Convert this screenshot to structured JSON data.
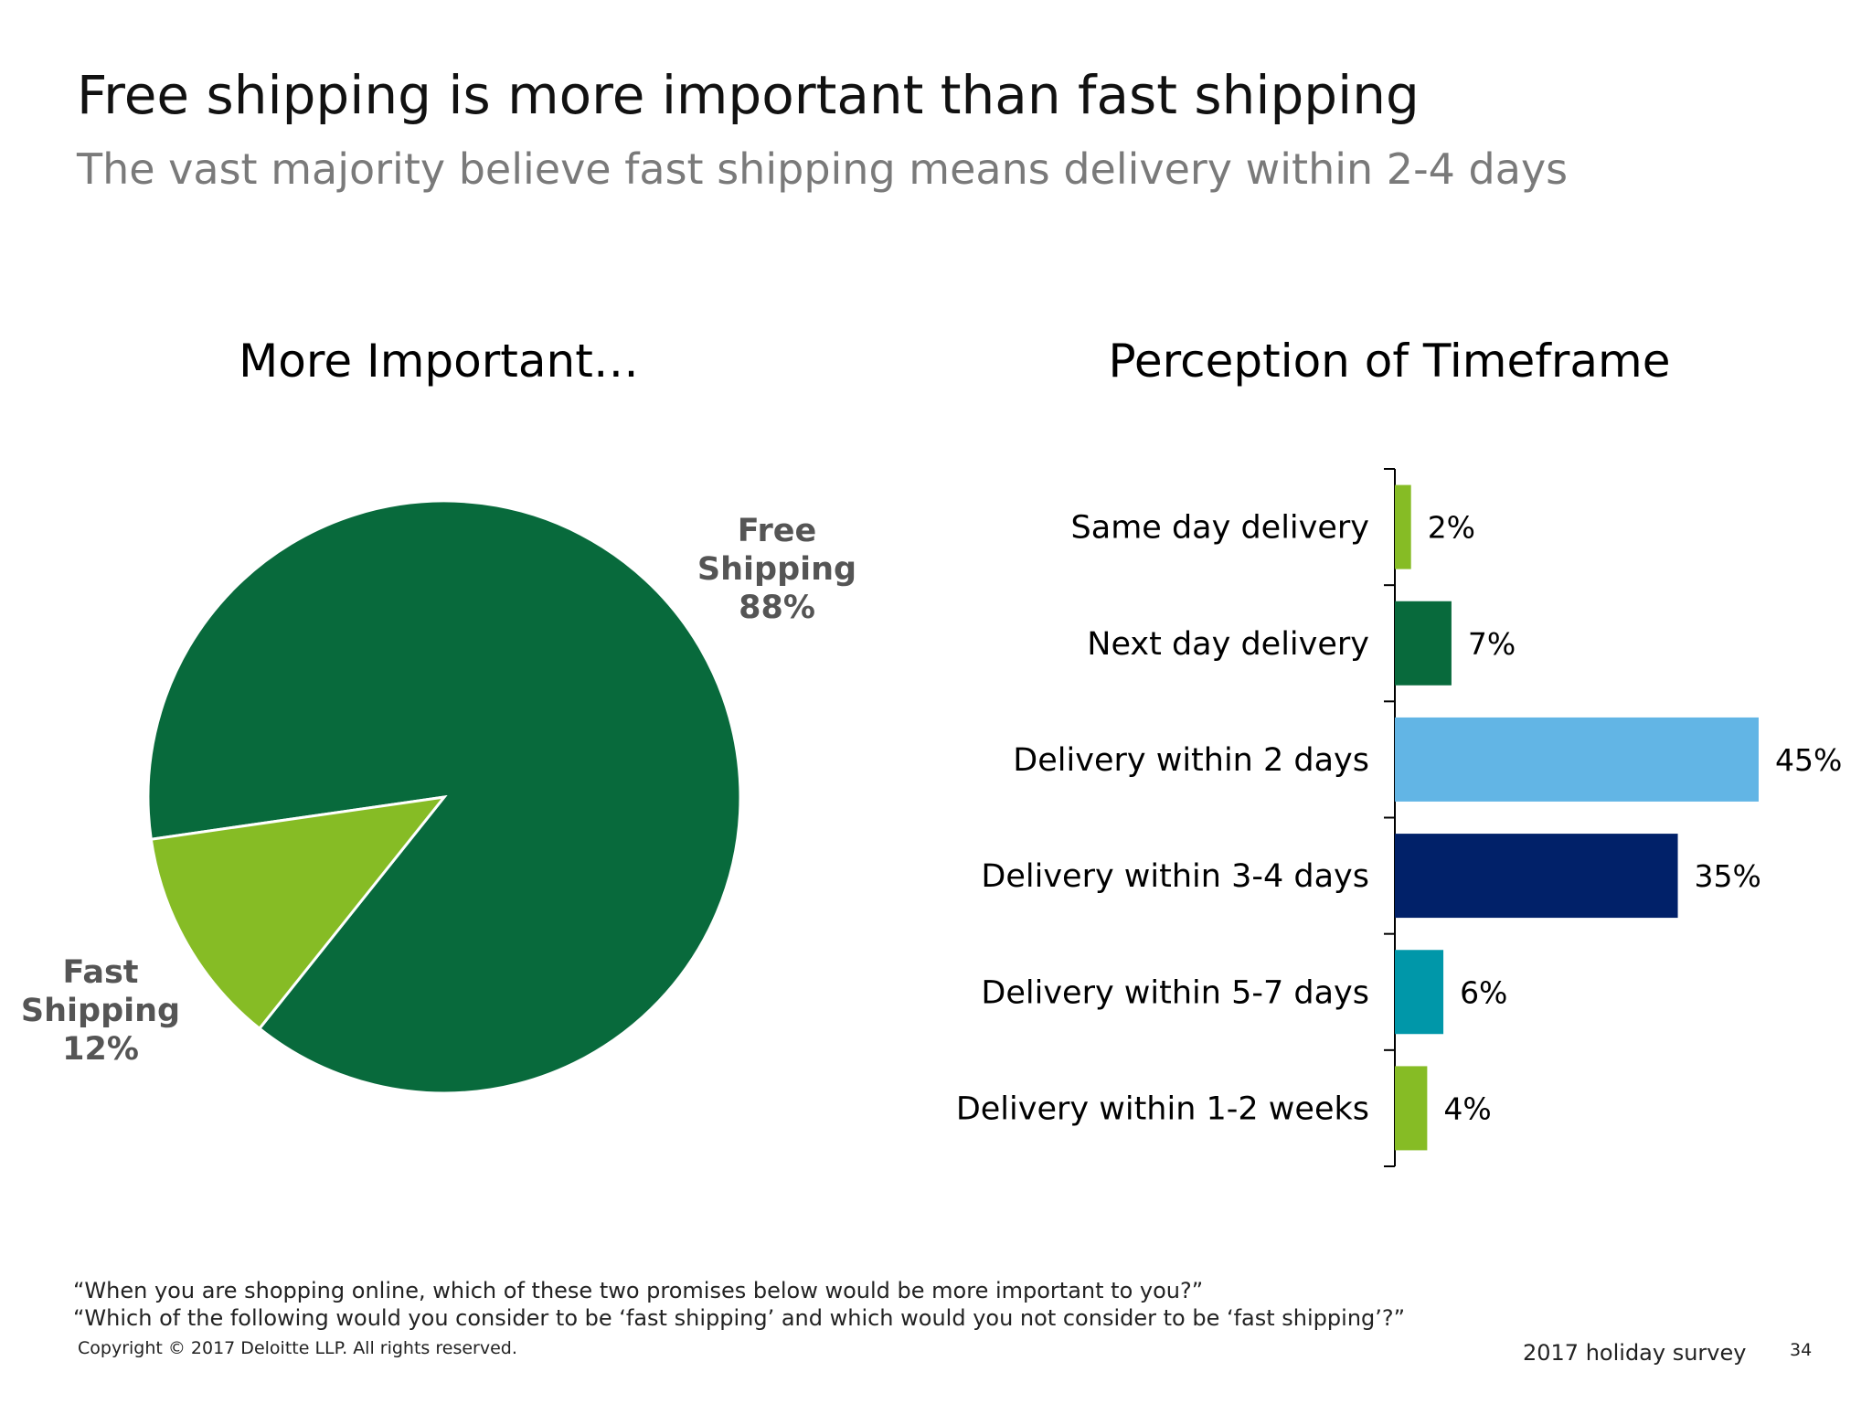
{
  "header": {
    "title": "Free shipping is more important than fast shipping",
    "subtitle": "The vast majority believe fast shipping means delivery within 2-4 days"
  },
  "chart_data": [
    {
      "type": "pie",
      "title": "More Important…",
      "slices": [
        {
          "name_line1": "Free",
          "name_line2": "Shipping",
          "value": 88,
          "value_label": "88%",
          "color": "#086a3c"
        },
        {
          "name_line1": "Fast",
          "name_line2": "Shipping",
          "value": 12,
          "value_label": "12%",
          "color": "#86bc25"
        }
      ]
    },
    {
      "type": "bar",
      "orientation": "horizontal",
      "title": "Perception of Timeframe",
      "categories": [
        "Same day delivery",
        "Next day delivery",
        "Delivery within 2 days",
        "Delivery within 3-4 days",
        "Delivery within 5-7 days",
        "Delivery within 1-2 weeks"
      ],
      "values": [
        2,
        7,
        45,
        35,
        6,
        4
      ],
      "value_labels": [
        "2%",
        "7%",
        "45%",
        "35%",
        "6%",
        "4%"
      ],
      "colors": [
        "#86bc25",
        "#086a3c",
        "#62b5e5",
        "#012169",
        "#0097a9",
        "#86bc25"
      ],
      "xlim": [
        0,
        45
      ]
    }
  ],
  "footnotes": {
    "q1": "“When you are shopping online, which of these two promises below would be more important to you?”",
    "q2": "“Which of the following would you consider to be ‘fast shipping’ and which would you not consider to be ‘fast shipping’?”"
  },
  "footer": {
    "copyright": "Copyright © 2017 Deloitte LLP. All rights reserved.",
    "survey": "2017 holiday survey",
    "page": "34"
  }
}
